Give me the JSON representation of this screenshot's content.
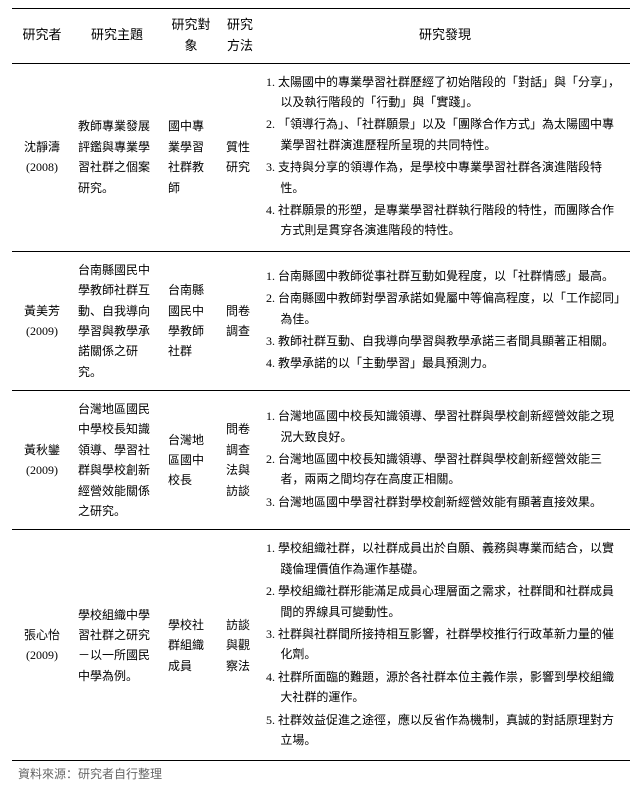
{
  "headers": {
    "author": "研究者",
    "topic": "研究主題",
    "target": "研究對象",
    "method": "研究方法",
    "findings": "研究發現"
  },
  "rows": [
    {
      "author_name": "沈靜濤",
      "author_year": "(2008)",
      "topic": "教師專業發展評鑑與專業學習社群之個案研究。",
      "target": "國中專業學習社群教師",
      "method": "質性研究",
      "findings": [
        "太陽國中的專業學習社群歷經了初始階段的「對話」與「分享」，以及執行階段的「行動」與「實踐」。",
        "「領導行為」、「社群願景」以及「團隊合作方式」為太陽國中專業學習社群演進歷程所呈現的共同特性。",
        "支持與分享的領導作為，是學校中專業學習社群各演進階段特性。",
        "社群願景的形塑，是專業學習社群執行階段的特性，而團隊合作方式則是貫穿各演進階段的特性。"
      ]
    },
    {
      "author_name": "黃美芳",
      "author_year": "(2009)",
      "topic": "台南縣國民中學教師社群互動、自我導向學習與教學承諾關係之研究。",
      "target": "台南縣國民中學教師社群",
      "method": "問卷調查",
      "findings": [
        "台南縣國中教師從事社群互動如覺程度，以「社群情感」最高。",
        "台南縣國中教師對學習承諾如覺屬中等偏高程度，以「工作認同」為佳。",
        "教師社群互動、自我導向學習與教學承諾三者間具顯著正相關。",
        "教學承諾的以「主動學習」最具預測力。"
      ]
    },
    {
      "author_name": "黃秋鑾",
      "author_year": "(2009)",
      "topic": "台灣地區國民中學校長知識領導、學習社群與學校創新經營效能關係之研究。",
      "target": "台灣地區國中校長",
      "method": "問卷調查法與訪談",
      "findings": [
        "台灣地區國中校長知識領導、學習社群與學校創新經營效能之現況大致良好。",
        "台灣地區國中校長知識領導、學習社群與學校創新經營效能三者，兩兩之間均存在高度正相關。",
        "台灣地區國中學習社群對學校創新經營效能有顯著直接效果。"
      ]
    },
    {
      "author_name": "張心怡",
      "author_year": "(2009)",
      "topic": "學校組織中學習社群之研究－以一所國民中學為例。",
      "target": "學校社群組織成員",
      "method": "訪談與觀察法",
      "findings": [
        "學校組織社群，以社群成員出於自願、義務與專業而結合，以實踐倫理價值作為運作基礎。",
        "學校組織社群形能滿足成員心理層面之需求，社群間和社群成員間的界線具可變動性。",
        "社群與社群間所接持相互影響，社群學校推行行政革新力量的催化劑。",
        "社群所面臨的難題，源於各社群本位主義作祟，影響到學校組織大社群的運作。",
        "社群效益促進之途徑，應以反省作為機制，真誠的對話原理對方立場。"
      ]
    }
  ],
  "source_note": "資料來源：研究者自行整理"
}
